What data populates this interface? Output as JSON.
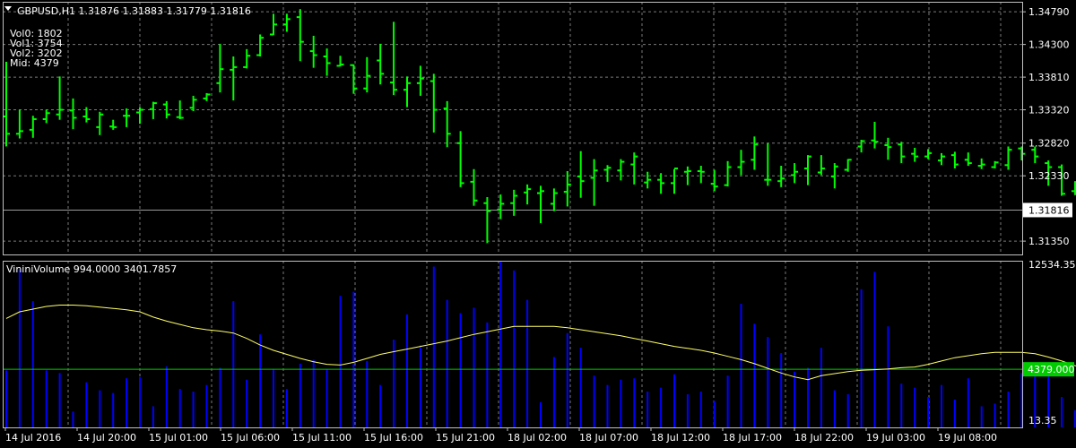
{
  "chart_data": [
    {
      "type": "ohlc",
      "title": "GBPUSD,H1  1.31876 1.31883 1.31779 1.31816",
      "info_lines": [
        "Vol0: 1802",
        "Vol1: 3754",
        "Vol2: 3202",
        "Mid: 4379"
      ],
      "ylim": [
        1.3115,
        1.3494
      ],
      "y_ticks": [
        "1.34790",
        "1.34300",
        "1.33810",
        "1.33320",
        "1.32820",
        "1.32330",
        "1.31350"
      ],
      "current_price": 1.31816,
      "current_price_label": "1.31816",
      "bar_color": "#00ff00",
      "bars": [
        [
          1.3322,
          1.3404,
          1.3277,
          1.3296
        ],
        [
          1.3296,
          1.3332,
          1.3289,
          1.33
        ],
        [
          1.3302,
          1.3323,
          1.329,
          1.3318
        ],
        [
          1.3318,
          1.3332,
          1.3312,
          1.3327
        ],
        [
          1.3325,
          1.3382,
          1.3317,
          1.3332
        ],
        [
          1.3331,
          1.3349,
          1.3303,
          1.332
        ],
        [
          1.3322,
          1.3336,
          1.3313,
          1.3318
        ],
        [
          1.3306,
          1.3329,
          1.3294,
          1.3325
        ],
        [
          1.3307,
          1.3317,
          1.3302,
          1.3306
        ],
        [
          1.3323,
          1.3334,
          1.3306,
          1.3323
        ],
        [
          1.3328,
          1.3336,
          1.3311,
          1.3332
        ],
        [
          1.3333,
          1.3344,
          1.3318,
          1.3342
        ],
        [
          1.334,
          1.3345,
          1.3319,
          1.3325
        ],
        [
          1.3321,
          1.3346,
          1.3318,
          1.332
        ],
        [
          1.3335,
          1.3353,
          1.333,
          1.3347
        ],
        [
          1.3349,
          1.3357,
          1.3345,
          1.3355
        ],
        [
          1.3372,
          1.3431,
          1.3358,
          1.3393
        ],
        [
          1.3392,
          1.3412,
          1.3346,
          1.3396
        ],
        [
          1.3396,
          1.3423,
          1.3394,
          1.3413
        ],
        [
          1.3414,
          1.3445,
          1.3412,
          1.344
        ],
        [
          1.3445,
          1.3476,
          1.3444,
          1.346
        ],
        [
          1.346,
          1.3476,
          1.3449,
          1.3468
        ],
        [
          1.3471,
          1.3483,
          1.3405,
          1.3434
        ],
        [
          1.342,
          1.3443,
          1.3395,
          1.3414
        ],
        [
          1.3412,
          1.3424,
          1.3383,
          1.3402
        ],
        [
          1.3398,
          1.3413,
          1.3397,
          1.34
        ],
        [
          1.3399,
          1.34,
          1.3356,
          1.3364
        ],
        [
          1.3364,
          1.3411,
          1.3358,
          1.3383
        ],
        [
          1.3406,
          1.3431,
          1.337,
          1.3386
        ],
        [
          1.3373,
          1.3464,
          1.3354,
          1.3362
        ],
        [
          1.3362,
          1.3382,
          1.3336,
          1.3372
        ],
        [
          1.3372,
          1.3398,
          1.3353,
          1.3379
        ],
        [
          1.3375,
          1.3386,
          1.3298,
          1.3332
        ],
        [
          1.3334,
          1.3345,
          1.3276,
          1.3296
        ],
        [
          1.3282,
          1.33,
          1.3216,
          1.3222
        ],
        [
          1.3224,
          1.3243,
          1.3188,
          1.3196
        ],
        [
          1.3192,
          1.3201,
          1.3132,
          1.318
        ],
        [
          1.3182,
          1.3205,
          1.3168,
          1.3191
        ],
        [
          1.3192,
          1.3212,
          1.3173,
          1.3203
        ],
        [
          1.3208,
          1.322,
          1.319,
          1.3213
        ],
        [
          1.3207,
          1.3218,
          1.3162,
          1.321
        ],
        [
          1.3191,
          1.3214,
          1.318,
          1.3207
        ],
        [
          1.3209,
          1.324,
          1.3187,
          1.322
        ],
        [
          1.3232,
          1.327,
          1.32,
          1.3225
        ],
        [
          1.323,
          1.3258,
          1.3188,
          1.3241
        ],
        [
          1.3242,
          1.3249,
          1.3224,
          1.3245
        ],
        [
          1.3241,
          1.3258,
          1.3226,
          1.3254
        ],
        [
          1.325,
          1.3268,
          1.322,
          1.3262
        ],
        [
          1.3223,
          1.3239,
          1.3214,
          1.3227
        ],
        [
          1.3227,
          1.3237,
          1.3206,
          1.3222
        ],
        [
          1.3222,
          1.3243,
          1.3206,
          1.3244
        ],
        [
          1.3239,
          1.3247,
          1.3219,
          1.324
        ],
        [
          1.324,
          1.3248,
          1.3222,
          1.3239
        ],
        [
          1.3221,
          1.3242,
          1.321,
          1.3217
        ],
        [
          1.3219,
          1.3255,
          1.3217,
          1.3246
        ],
        [
          1.3246,
          1.3272,
          1.3234,
          1.3254
        ],
        [
          1.3257,
          1.3292,
          1.3242,
          1.328
        ],
        [
          1.3227,
          1.3282,
          1.3218,
          1.3227
        ],
        [
          1.3225,
          1.3248,
          1.3216,
          1.3229
        ],
        [
          1.3234,
          1.3252,
          1.3222,
          1.3239
        ],
        [
          1.3244,
          1.3264,
          1.3219,
          1.3262
        ],
        [
          1.3238,
          1.3264,
          1.3234,
          1.3244
        ],
        [
          1.3232,
          1.3252,
          1.3214,
          1.3247
        ],
        [
          1.3242,
          1.3258,
          1.3239,
          1.3257
        ],
        [
          1.3277,
          1.3287,
          1.3268,
          1.3285
        ],
        [
          1.3286,
          1.3314,
          1.3274,
          1.3284
        ],
        [
          1.3279,
          1.329,
          1.3257,
          1.3276
        ],
        [
          1.328,
          1.3284,
          1.3252,
          1.3262
        ],
        [
          1.3266,
          1.3275,
          1.3254,
          1.3262
        ],
        [
          1.3262,
          1.3273,
          1.3258,
          1.3267
        ],
        [
          1.3256,
          1.3267,
          1.3249,
          1.3262
        ],
        [
          1.3264,
          1.3269,
          1.3244,
          1.325
        ],
        [
          1.3257,
          1.3268,
          1.3248,
          1.3252
        ],
        [
          1.3248,
          1.3259,
          1.3243,
          1.325
        ],
        [
          1.3246,
          1.3255,
          1.3244,
          1.3253
        ],
        [
          1.3249,
          1.3277,
          1.3242,
          1.3272
        ],
        [
          1.3274,
          1.3277,
          1.3256,
          1.3266
        ],
        [
          1.3272,
          1.3277,
          1.3252,
          1.3262
        ],
        [
          1.3252,
          1.3256,
          1.3218,
          1.3246
        ],
        [
          1.3246,
          1.325,
          1.3203,
          1.3206
        ],
        [
          1.321,
          1.3225,
          1.3204,
          1.3211
        ],
        [
          1.3219,
          1.3231,
          1.32,
          1.3227
        ],
        [
          1.3222,
          1.3228,
          1.321,
          1.3215
        ],
        [
          1.3225,
          1.3231,
          1.3199,
          1.3224
        ],
        [
          1.322,
          1.3232,
          1.3209,
          1.3222
        ],
        [
          1.3226,
          1.3233,
          1.32,
          1.3231
        ],
        [
          1.323,
          1.3233,
          1.3176,
          1.318
        ],
        [
          1.3184,
          1.3219,
          1.3177,
          1.3188
        ],
        [
          1.3188,
          1.319,
          1.3178,
          1.3182
        ]
      ],
      "x_labels": [
        "14 Jul 2016",
        "14 Jul 20:00",
        "15 Jul 01:00",
        "15 Jul 06:00",
        "15 Jul 11:00",
        "15 Jul 16:00",
        "15 Jul 21:00",
        "18 Jul 02:00",
        "18 Jul 07:00",
        "18 Jul 12:00",
        "18 Jul 17:00",
        "18 Jul 22:00",
        "19 Jul 03:00",
        "19 Jul 08:00"
      ]
    },
    {
      "type": "bar",
      "title": "VininiVolume 994.0000 3401.7857",
      "ylim": [
        13.35,
        12534.35
      ],
      "y_top_label": "12534.35",
      "y_bottom_label": "13.35",
      "level_value": 4379.0,
      "level_label": "4379.000",
      "bar_color": "#0000ff",
      "line_color": "#ffff66",
      "level_color": "#00cc00",
      "values": [
        4300,
        11900,
        9500,
        4300,
        4100,
        1200,
        3400,
        2800,
        2600,
        3700,
        3800,
        1600,
        4600,
        2900,
        2700,
        3200,
        4500,
        9500,
        3600,
        7000,
        4400,
        2900,
        4800,
        5100,
        4400,
        9900,
        10200,
        5000,
        3200,
        6600,
        8500,
        6200,
        12100,
        9600,
        8600,
        9000,
        7900,
        12500,
        11800,
        9600,
        1900,
        5300,
        7100,
        6000,
        3900,
        3200,
        3600,
        3700,
        2700,
        3000,
        4000,
        2500,
        2700,
        2000,
        3900,
        9300,
        7800,
        6800,
        5600,
        4200,
        4500,
        6000,
        2800,
        2500,
        10400,
        11700,
        7600,
        3300,
        3000,
        2300,
        3200,
        2100,
        3700,
        1600,
        1800,
        2700,
        4100,
        4400,
        4300,
        2300,
        1300,
        1600,
        2200,
        1900,
        2900,
        4700,
        9900,
        9100,
        1100
      ],
      "ma_values": [
        8200,
        8700,
        8900,
        9100,
        9200,
        9200,
        9150,
        9050,
        8950,
        8850,
        8700,
        8300,
        8000,
        7750,
        7500,
        7350,
        7250,
        7100,
        6700,
        6200,
        5800,
        5500,
        5200,
        4950,
        4750,
        4700,
        4900,
        5200,
        5500,
        5700,
        5900,
        6100,
        6300,
        6500,
        6750,
        7000,
        7200,
        7400,
        7600,
        7600,
        7600,
        7600,
        7500,
        7350,
        7200,
        7050,
        6900,
        6700,
        6500,
        6300,
        6100,
        5950,
        5800,
        5600,
        5350,
        5100,
        4800,
        4450,
        4100,
        3800,
        3600,
        3900,
        4050,
        4200,
        4300,
        4350,
        4400,
        4500,
        4550,
        4750,
        5000,
        5250,
        5400,
        5550,
        5650,
        5650,
        5650,
        5550,
        5300,
        5000,
        4650,
        4400,
        4300,
        4250,
        4200,
        4150,
        3900,
        3550,
        3000
      ]
    }
  ]
}
